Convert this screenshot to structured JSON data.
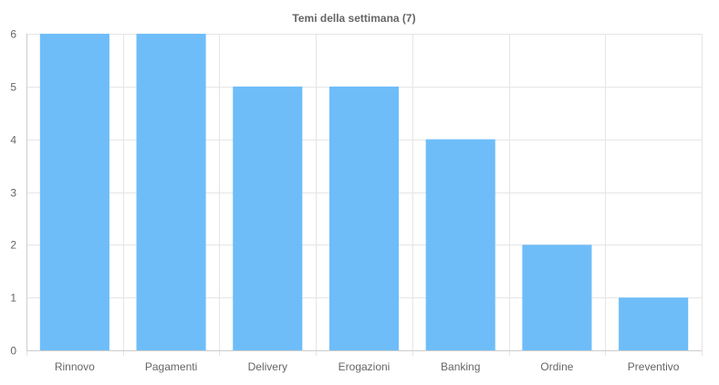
{
  "chart_data": {
    "type": "bar",
    "title": "Temi della settimana (7)",
    "xlabel": "",
    "ylabel": "",
    "categories": [
      "Rinnovo",
      "Pagamenti",
      "Delivery",
      "Erogazioni",
      "Banking",
      "Ordine",
      "Preventivo"
    ],
    "values": [
      6,
      6,
      5,
      5,
      4,
      2,
      1
    ],
    "ylim": [
      0,
      6
    ],
    "yticks": [
      "0",
      "1",
      "2",
      "3",
      "4",
      "5",
      "6"
    ],
    "grid": true,
    "legend": "none",
    "bar_color": "#6ebdf9"
  }
}
